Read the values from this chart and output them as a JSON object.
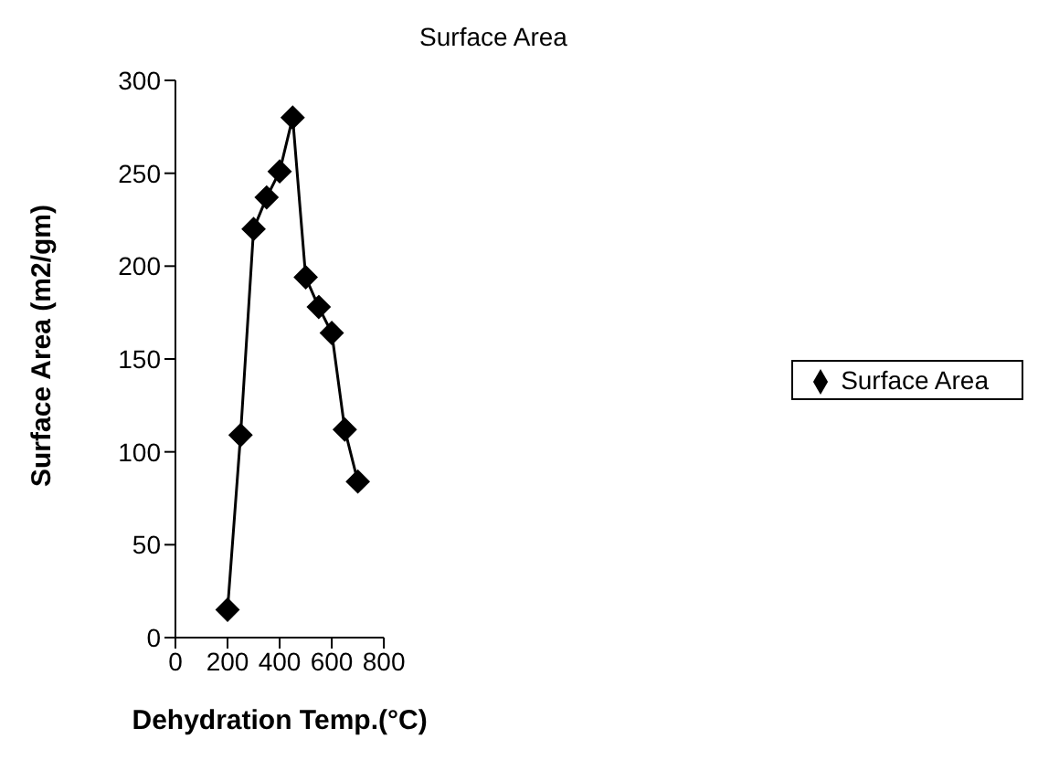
{
  "chart_data": {
    "type": "line",
    "title": "Surface Area",
    "xlabel": "Dehydration Temp.(°C)",
    "ylabel": "Surface Area (m2/gm)",
    "x": [
      200,
      250,
      300,
      350,
      400,
      450,
      500,
      550,
      600,
      650,
      700
    ],
    "series": [
      {
        "name": "Surface Area",
        "color": "#000000",
        "values": [
          15,
          109,
          220,
          237,
          251,
          280,
          194,
          178,
          164,
          112,
          84
        ]
      }
    ],
    "xlim": [
      0,
      800
    ],
    "xticks": [
      0,
      200,
      400,
      600,
      800
    ],
    "ylim": [
      0,
      300
    ],
    "yticks": [
      0,
      50,
      100,
      150,
      200,
      250,
      300
    ],
    "grid": false,
    "legend": "right",
    "marker": "diamond",
    "line_style": "solid"
  }
}
